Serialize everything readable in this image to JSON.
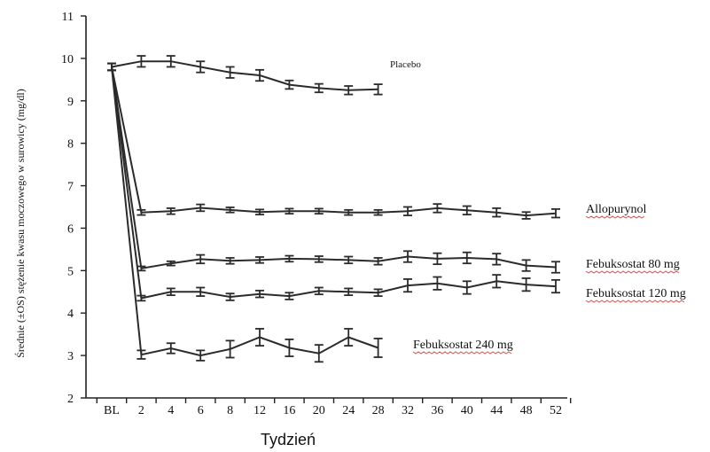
{
  "chart_data": {
    "type": "line",
    "xlabel": "Tydzień",
    "ylabel": "Średnie (±OS) stężenie kwasu moczowego w surowicy (mg/dl)",
    "categories": [
      "BL",
      "2",
      "4",
      "6",
      "8",
      "12",
      "16",
      "20",
      "24",
      "28",
      "32",
      "36",
      "40",
      "44",
      "48",
      "52"
    ],
    "ylim": [
      2,
      11
    ],
    "yticks": [
      2,
      3,
      4,
      5,
      6,
      7,
      8,
      9,
      10,
      11
    ],
    "grid": false,
    "series": [
      {
        "name": "Placebo",
        "values": [
          9.8,
          9.93,
          9.93,
          9.8,
          9.67,
          9.6,
          9.38,
          9.3,
          9.25,
          9.27,
          null,
          null,
          null,
          null,
          null,
          null
        ],
        "errors": [
          0.08,
          0.13,
          0.13,
          0.13,
          0.13,
          0.13,
          0.1,
          0.1,
          0.1,
          0.12,
          null,
          null,
          null,
          null,
          null,
          null
        ]
      },
      {
        "name": "Allopurynol",
        "values": [
          9.8,
          6.37,
          6.4,
          6.48,
          6.43,
          6.38,
          6.4,
          6.4,
          6.37,
          6.37,
          6.4,
          6.47,
          6.42,
          6.37,
          6.3,
          6.35
        ],
        "errors": [
          0.08,
          0.06,
          0.07,
          0.08,
          0.06,
          0.06,
          0.06,
          0.06,
          0.06,
          0.06,
          0.1,
          0.1,
          0.1,
          0.1,
          0.08,
          0.1
        ]
      },
      {
        "name": "Febuksostat 80 mg",
        "values": [
          9.8,
          5.05,
          5.17,
          5.27,
          5.23,
          5.25,
          5.28,
          5.27,
          5.25,
          5.22,
          5.33,
          5.28,
          5.3,
          5.27,
          5.12,
          5.08
        ],
        "errors": [
          0.08,
          0.05,
          0.05,
          0.1,
          0.07,
          0.07,
          0.07,
          0.07,
          0.08,
          0.08,
          0.13,
          0.13,
          0.13,
          0.13,
          0.13,
          0.13
        ]
      },
      {
        "name": "Febuksostat 120 mg",
        "values": [
          9.8,
          4.35,
          4.5,
          4.5,
          4.38,
          4.45,
          4.4,
          4.52,
          4.5,
          4.48,
          4.65,
          4.7,
          4.6,
          4.75,
          4.67,
          4.63
        ],
        "errors": [
          0.08,
          0.06,
          0.08,
          0.1,
          0.08,
          0.08,
          0.08,
          0.08,
          0.08,
          0.08,
          0.15,
          0.15,
          0.15,
          0.15,
          0.15,
          0.15
        ]
      },
      {
        "name": "Febuksostat 240 mg",
        "values": [
          9.8,
          3.02,
          3.17,
          3.0,
          3.15,
          3.43,
          3.18,
          3.05,
          3.43,
          3.18,
          null,
          null,
          null,
          null,
          null,
          null
        ],
        "errors": [
          0.08,
          0.1,
          0.12,
          0.12,
          0.2,
          0.2,
          0.2,
          0.2,
          0.2,
          0.22,
          null,
          null,
          null,
          null,
          null,
          null
        ]
      }
    ]
  }
}
